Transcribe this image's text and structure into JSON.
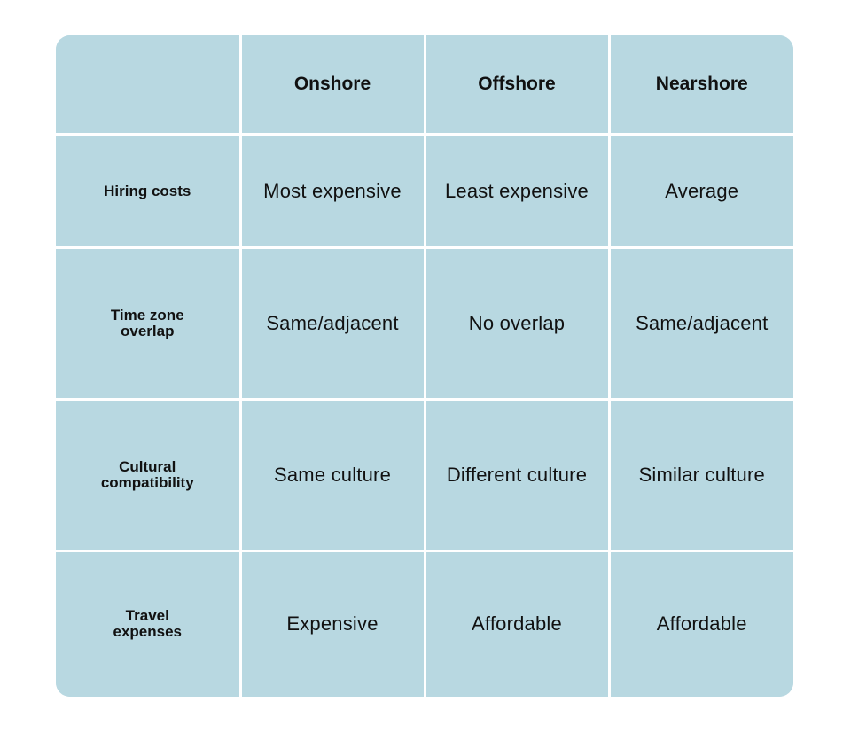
{
  "table": {
    "columns": [
      "",
      "Onshore",
      "Offshore",
      "Nearshore"
    ],
    "rows": [
      {
        "label": "Hiring costs",
        "values": [
          "Most expensive",
          "Least expensive",
          "Average"
        ]
      },
      {
        "label": "Time zone overlap",
        "values": [
          "Same/adjacent",
          "No overlap",
          "Same/adjacent"
        ]
      },
      {
        "label": "Cultural compatibility",
        "values": [
          "Same culture",
          "Different culture",
          "Similar culture"
        ]
      },
      {
        "label": "Travel expenses",
        "values": [
          "Expensive",
          "Affordable",
          "Affordable"
        ]
      }
    ]
  },
  "colors": {
    "cell_background": "#b8d8e1",
    "grid_lines": "#ffffff",
    "text": "#111111"
  }
}
